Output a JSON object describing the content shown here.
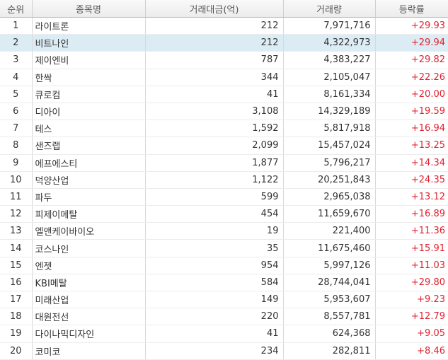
{
  "columns": [
    "순위",
    "종목명",
    "거래대금(억)",
    "거래량",
    "등락률"
  ],
  "selected_rank": "2",
  "colors": {
    "up": "#e0222f",
    "selected_row": "#dcecf5"
  },
  "rows": [
    {
      "rank": "1",
      "name": "라이트론",
      "amount": "212",
      "volume": "7,971,716",
      "rate": "+29.93"
    },
    {
      "rank": "2",
      "name": "비트나인",
      "amount": "212",
      "volume": "4,322,973",
      "rate": "+29.94"
    },
    {
      "rank": "3",
      "name": "제이엔비",
      "amount": "787",
      "volume": "4,383,227",
      "rate": "+29.82"
    },
    {
      "rank": "4",
      "name": "한싹",
      "amount": "344",
      "volume": "2,105,047",
      "rate": "+22.26"
    },
    {
      "rank": "5",
      "name": "큐로컴",
      "amount": "41",
      "volume": "8,161,334",
      "rate": "+20.00"
    },
    {
      "rank": "6",
      "name": "디아이",
      "amount": "3,108",
      "volume": "14,329,189",
      "rate": "+19.59"
    },
    {
      "rank": "7",
      "name": "테스",
      "amount": "1,592",
      "volume": "5,817,918",
      "rate": "+16.94"
    },
    {
      "rank": "8",
      "name": "샌즈랩",
      "amount": "2,099",
      "volume": "15,457,024",
      "rate": "+13.25"
    },
    {
      "rank": "9",
      "name": "에프에스티",
      "amount": "1,877",
      "volume": "5,796,217",
      "rate": "+14.34"
    },
    {
      "rank": "10",
      "name": "덕양산업",
      "amount": "1,122",
      "volume": "20,251,843",
      "rate": "+24.35"
    },
    {
      "rank": "11",
      "name": "파두",
      "amount": "599",
      "volume": "2,965,038",
      "rate": "+13.12"
    },
    {
      "rank": "12",
      "name": "피제이메탈",
      "amount": "454",
      "volume": "11,659,670",
      "rate": "+16.89"
    },
    {
      "rank": "13",
      "name": "엘앤케이바이오",
      "amount": "19",
      "volume": "221,400",
      "rate": "+11.36"
    },
    {
      "rank": "14",
      "name": "코스나인",
      "amount": "35",
      "volume": "11,675,460",
      "rate": "+15.91"
    },
    {
      "rank": "15",
      "name": "엔젯",
      "amount": "954",
      "volume": "5,997,126",
      "rate": "+11.03"
    },
    {
      "rank": "16",
      "name": "KBI메탈",
      "amount": "584",
      "volume": "28,744,041",
      "rate": "+29.80"
    },
    {
      "rank": "17",
      "name": "미래산업",
      "amount": "149",
      "volume": "5,953,607",
      "rate": "+9.23"
    },
    {
      "rank": "18",
      "name": "대원전선",
      "amount": "220",
      "volume": "8,557,781",
      "rate": "+12.79"
    },
    {
      "rank": "19",
      "name": "다이나믹디자인",
      "amount": "41",
      "volume": "624,368",
      "rate": "+9.05"
    },
    {
      "rank": "20",
      "name": "코미코",
      "amount": "234",
      "volume": "282,811",
      "rate": "+8.46"
    }
  ]
}
